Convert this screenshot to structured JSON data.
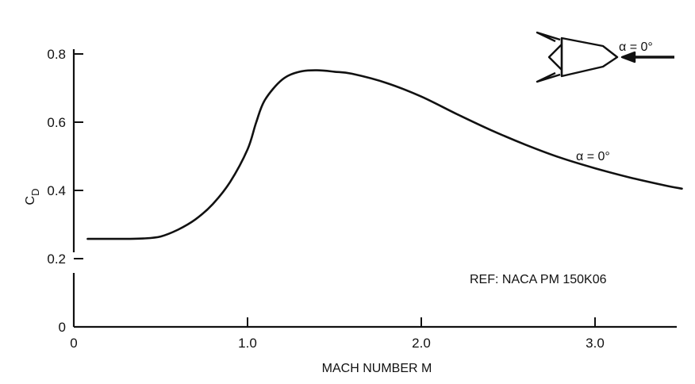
{
  "chart_data": {
    "type": "line",
    "xlabel": "MACH NUMBER M",
    "ylabel": "C",
    "ylabel_sub": "D",
    "xlim": [
      0,
      3.5
    ],
    "ylim": [
      0,
      0.8
    ],
    "axis_break": "y between 0 and 0.2",
    "x_ticks": [
      0,
      1.0,
      2.0,
      3.0
    ],
    "x_tick_labels": [
      "0",
      "1.0",
      "2.0",
      "3.0"
    ],
    "y_ticks": [
      0,
      0.2,
      0.4,
      0.6,
      0.8
    ],
    "y_tick_labels": [
      "0",
      "0.2",
      "0.4",
      "0.6",
      "0.8"
    ],
    "grid": false,
    "series": [
      {
        "name": "α = 0°",
        "x": [
          0.08,
          0.2,
          0.3,
          0.4,
          0.5,
          0.6,
          0.7,
          0.8,
          0.9,
          1.0,
          1.05,
          1.1,
          1.2,
          1.3,
          1.4,
          1.5,
          1.6,
          1.8,
          2.0,
          2.2,
          2.4,
          2.6,
          2.8,
          3.0,
          3.2,
          3.4,
          3.5
        ],
        "y": [
          0.258,
          0.258,
          0.258,
          0.259,
          0.265,
          0.285,
          0.315,
          0.36,
          0.425,
          0.52,
          0.6,
          0.665,
          0.725,
          0.748,
          0.752,
          0.748,
          0.742,
          0.715,
          0.675,
          0.625,
          0.577,
          0.534,
          0.496,
          0.465,
          0.438,
          0.415,
          0.405
        ]
      }
    ],
    "annotations": {
      "curve_label": "α  =  0°",
      "inset_label": "α  =  0°",
      "reference": "REF: NACA PM 150K06"
    },
    "inset_icon": "missile-nose-with-fins-and-flow-arrow"
  }
}
